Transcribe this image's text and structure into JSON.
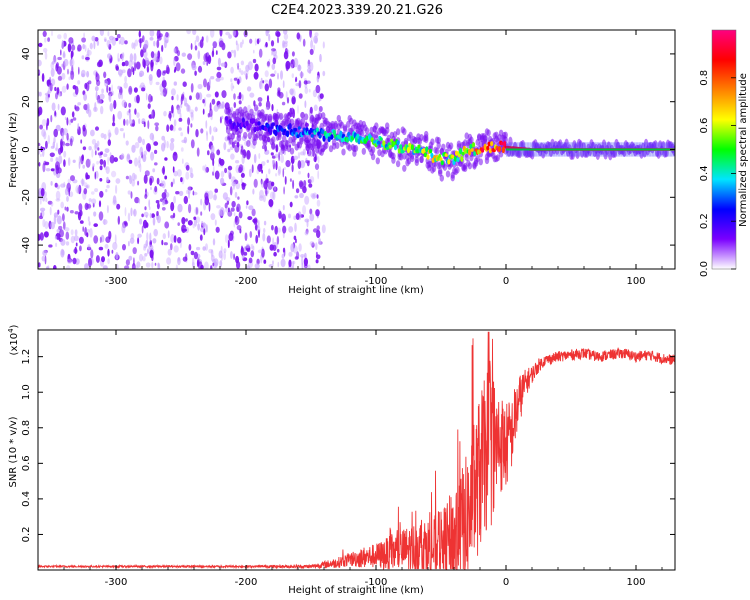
{
  "figure": {
    "title": "C2E4.2023.339.20.21.G26"
  },
  "chart_data": [
    {
      "type": "heatmap",
      "xlabel": "Height of straight line (km)",
      "ylabel": "Frequency (Hz)",
      "xlim": [
        -360,
        130
      ],
      "ylim": [
        -50,
        50
      ],
      "x_ticks": [
        -300,
        -200,
        -100,
        0,
        100
      ],
      "y_ticks": [
        -40,
        -20,
        0,
        20,
        40
      ],
      "x_tick_labels": [
        "-300",
        "-200",
        "-100",
        "0",
        "100"
      ],
      "y_tick_labels": [
        "-40",
        "-20",
        "0",
        "20",
        "40"
      ],
      "colorbar": {
        "label": "Normalized spectral amplitude",
        "range": [
          0,
          1
        ],
        "ticks": [
          0.0,
          0.2,
          0.4,
          0.6,
          0.8
        ],
        "tick_labels": [
          "0.0",
          "0.2",
          "0.4",
          "0.6",
          "0.8"
        ],
        "colors": [
          "#ffffff",
          "#7a00ff",
          "#0000ff",
          "#00e5ff",
          "#00ff00",
          "#ffff00",
          "#ff8000",
          "#ff0000",
          "#ff0080"
        ]
      },
      "noise_region": {
        "x_from": -360,
        "x_to": -140,
        "density": "scattered",
        "dominant_amplitude": 0.1
      },
      "ridge": {
        "x": [
          -215,
          -190,
          -170,
          -150,
          -130,
          -110,
          -95,
          -80,
          -65,
          -55,
          -45,
          -38,
          -30,
          -20,
          -10,
          0,
          20,
          50,
          80,
          110,
          130
        ],
        "y": [
          11,
          10,
          8,
          7,
          6,
          5,
          3,
          1,
          -1,
          -3,
          -4,
          -3,
          -1,
          1,
          1,
          1,
          0,
          0,
          0,
          0,
          0
        ],
        "amplitude": [
          0.15,
          0.2,
          0.3,
          0.35,
          0.4,
          0.45,
          0.5,
          0.55,
          0.55,
          0.6,
          0.55,
          0.55,
          0.6,
          0.8,
          0.85,
          0.9,
          0.9,
          0.85,
          0.85,
          0.85,
          0.85
        ]
      }
    },
    {
      "type": "line",
      "xlabel": "Height of straight line (km)",
      "ylabel": "SNR (10 * v/v)",
      "y_multiplier_label": "(x10",
      "y_multiplier_exp": "4",
      "y_multiplier_close": ")",
      "xlim": [
        -360,
        130
      ],
      "ylim": [
        0,
        1.35
      ],
      "x_ticks": [
        -300,
        -200,
        -100,
        0,
        100
      ],
      "y_ticks": [
        0.2,
        0.4,
        0.6,
        0.8,
        1.0,
        1.2
      ],
      "x_tick_labels": [
        "-300",
        "-200",
        "-100",
        "0",
        "100"
      ],
      "y_tick_labels": [
        "0.2",
        "0.4",
        "0.6",
        "0.8",
        "1.0",
        "1.2"
      ],
      "color": "#ee3333",
      "series": [
        {
          "x": [
            -360,
            -300,
            -200,
            -150,
            -130,
            -120,
            -110,
            -100,
            -90,
            -80,
            -70,
            -60,
            -50,
            -40,
            -30,
            -25,
            -20,
            -15,
            -12,
            -10,
            -5,
            0,
            5,
            10,
            15,
            20,
            25,
            30,
            40,
            50,
            60,
            70,
            80,
            90,
            100,
            110,
            120,
            130
          ],
          "y": [
            0.02,
            0.02,
            0.02,
            0.02,
            0.04,
            0.06,
            0.07,
            0.08,
            0.09,
            0.11,
            0.12,
            0.13,
            0.15,
            0.2,
            0.3,
            0.45,
            0.6,
            0.7,
            0.8,
            0.75,
            0.75,
            0.72,
            0.8,
            0.95,
            1.05,
            1.1,
            1.15,
            1.18,
            1.2,
            1.21,
            1.22,
            1.2,
            1.21,
            1.22,
            1.2,
            1.21,
            1.19,
            1.18
          ],
          "noise": [
            0.005,
            0.005,
            0.006,
            0.01,
            0.03,
            0.04,
            0.06,
            0.07,
            0.1,
            0.12,
            0.15,
            0.18,
            0.2,
            0.3,
            0.4,
            0.4,
            0.45,
            0.45,
            0.55,
            0.4,
            0.3,
            0.25,
            0.2,
            0.15,
            0.08,
            0.05,
            0.04,
            0.03,
            0.03,
            0.03,
            0.03,
            0.03,
            0.03,
            0.03,
            0.03,
            0.03,
            0.03,
            0.03
          ]
        }
      ]
    }
  ]
}
